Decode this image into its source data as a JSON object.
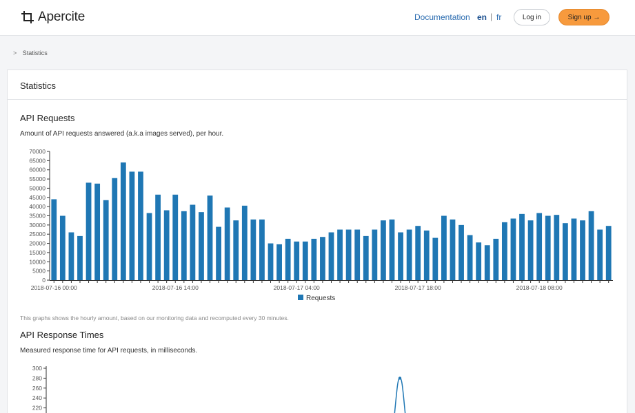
{
  "brand": {
    "name": "Apercite",
    "logo_icon": "crop-icon"
  },
  "nav": {
    "documentation": "Documentation",
    "lang_en": "en",
    "lang_sep": "|",
    "lang_fr": "fr",
    "login": "Log in",
    "signup": "Sign up →"
  },
  "breadcrumb": {
    "chevron": ">",
    "current": "Statistics"
  },
  "card": {
    "title": "Statistics"
  },
  "requests_section": {
    "title": "API Requests",
    "description": "Amount of API requests answered (a.k.a images served), per hour.",
    "note": "This graphs shows the hourly amount, based on our monitoring data and recomputed every 30 minutes."
  },
  "response_section": {
    "title": "API Response Times",
    "description": "Measured response time for API requests, in milliseconds."
  },
  "chart_data": [
    {
      "type": "bar",
      "y_ticks": [
        "70000",
        "65000",
        "60000",
        "55000",
        "50000",
        "45000",
        "40000",
        "35000",
        "30000",
        "25000",
        "20000",
        "15000",
        "10000",
        "5000",
        "0"
      ],
      "ylim": [
        0,
        70000
      ],
      "x_tick_labels": [
        "2018-07-16 00:00",
        "2018-07-16 14:00",
        "2018-07-17 04:00",
        "2018-07-17 18:00",
        "2018-07-18 08:00"
      ],
      "series": [
        {
          "name": "Requests",
          "color": "#1f77b4",
          "values": [
            44000,
            35000,
            26000,
            24000,
            53000,
            52500,
            43500,
            55500,
            64000,
            59000,
            59000,
            36500,
            46500,
            38000,
            46500,
            37500,
            41000,
            37000,
            46000,
            29000,
            39500,
            32500,
            40500,
            33000,
            33000,
            20000,
            19500,
            22500,
            21000,
            21000,
            22500,
            23500,
            26000,
            27500,
            27500,
            27500,
            24000,
            27500,
            32500,
            33000,
            26000,
            27500,
            29500,
            27000,
            23000,
            35000,
            33000,
            30000,
            24500,
            20500,
            19000,
            22500,
            31500,
            33500,
            36000,
            32500,
            36500,
            35000,
            35500,
            31000,
            33500,
            32500,
            37500,
            27500,
            29500
          ]
        }
      ],
      "legend": "bottom-center",
      "grid": false
    },
    {
      "type": "line",
      "y_ticks": [
        "300",
        "280",
        "260",
        "240",
        "220"
      ],
      "series": [
        {
          "name": "",
          "color": "#1f77b4",
          "peak_value": 280
        }
      ],
      "grid": false
    }
  ]
}
